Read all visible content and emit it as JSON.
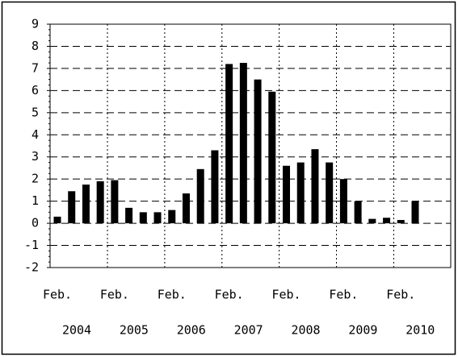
{
  "chart_data": {
    "type": "bar",
    "categories": [
      "Feb.",
      null,
      null,
      null,
      "Feb.",
      null,
      null,
      null,
      "Feb.",
      null,
      null,
      null,
      "Feb.",
      null,
      null,
      null,
      "Feb.",
      null,
      null,
      null,
      "Feb.",
      null,
      null,
      null,
      "Feb.",
      null
    ],
    "category_years": [
      "2004",
      "2005",
      "2006",
      "2007",
      "2008",
      "2009",
      "2010"
    ],
    "values": [
      0.3,
      1.45,
      1.75,
      1.9,
      1.95,
      0.7,
      0.5,
      0.5,
      0.6,
      1.35,
      2.45,
      3.3,
      7.2,
      7.25,
      6.5,
      5.95,
      2.6,
      2.75,
      3.35,
      2.75,
      2.0,
      1.0,
      0.2,
      0.25,
      0.15,
      1.0
    ],
    "color": "#000000",
    "ylim": [
      -2,
      9
    ],
    "yticks": [
      -2,
      -1,
      0,
      1,
      2,
      3,
      4,
      5,
      6,
      7,
      8,
      9
    ],
    "grid": true
  }
}
